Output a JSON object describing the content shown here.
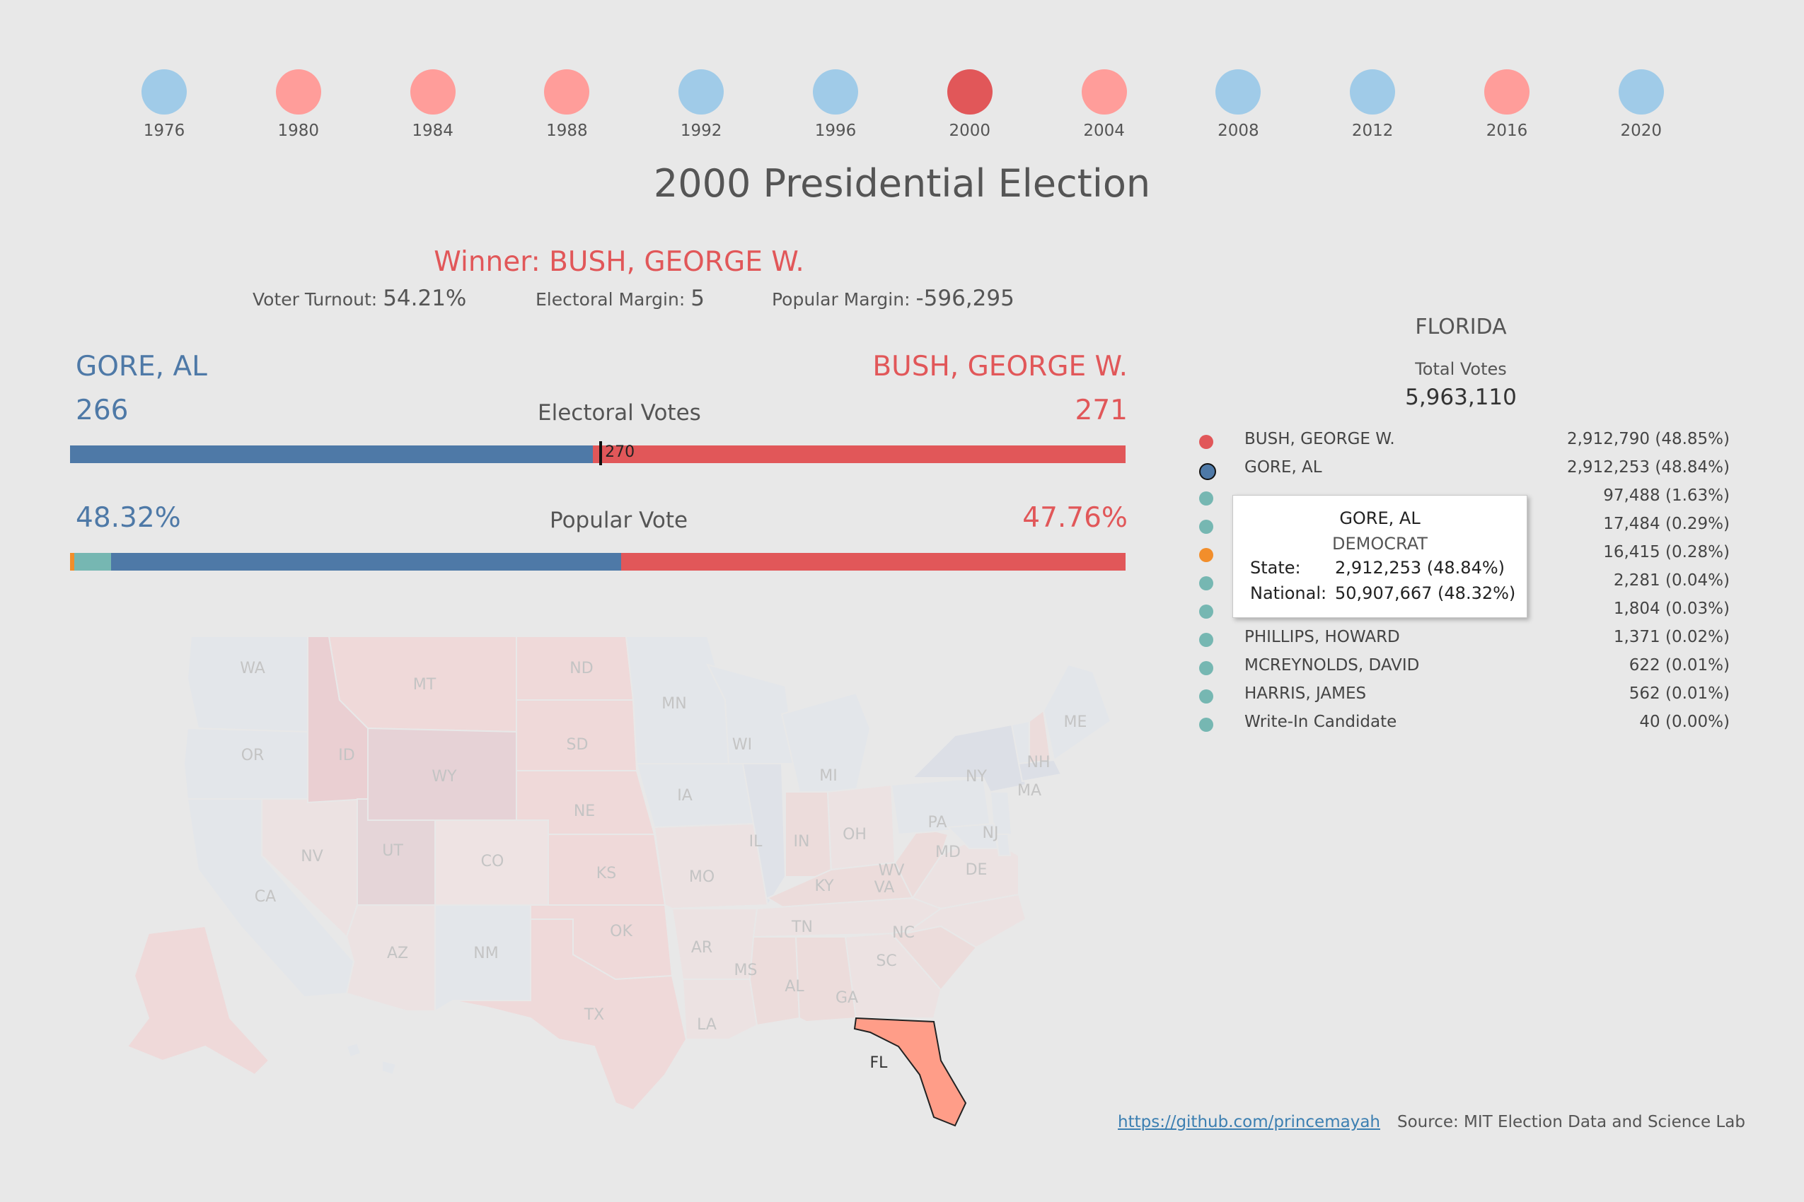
{
  "timeline": [
    {
      "year": "1976",
      "color": "#a0cbe8",
      "selected": false
    },
    {
      "year": "1980",
      "color": "#ff9d9a",
      "selected": false
    },
    {
      "year": "1984",
      "color": "#ff9d9a",
      "selected": false
    },
    {
      "year": "1988",
      "color": "#ff9d9a",
      "selected": false
    },
    {
      "year": "1992",
      "color": "#a0cbe8",
      "selected": false
    },
    {
      "year": "1996",
      "color": "#a0cbe8",
      "selected": false
    },
    {
      "year": "2000",
      "color": "#e15759",
      "selected": true
    },
    {
      "year": "2004",
      "color": "#ff9d9a",
      "selected": false
    },
    {
      "year": "2008",
      "color": "#a0cbe8",
      "selected": false
    },
    {
      "year": "2012",
      "color": "#a0cbe8",
      "selected": false
    },
    {
      "year": "2016",
      "color": "#ff9d9a",
      "selected": false
    },
    {
      "year": "2020",
      "color": "#a0cbe8",
      "selected": false
    }
  ],
  "title": "2000 Presidential Election",
  "winner": "Winner: BUSH, GEORGE W.",
  "stats": {
    "turnout_label": "Voter Turnout:",
    "turnout_value": "54.21%",
    "electoral_margin_label": "Electoral Margin:",
    "electoral_margin_value": "5",
    "popular_margin_label": "Popular Margin:",
    "popular_margin_value": "-596,295"
  },
  "candidates": {
    "left": {
      "name": "GORE, AL",
      "electoral": "266",
      "popular": "48.32%",
      "color": "#4e79a7"
    },
    "right": {
      "name": "BUSH, GEORGE W.",
      "electoral": "271",
      "popular": "47.76%",
      "color": "#e15759"
    }
  },
  "electoral_votes": {
    "label": "Electoral Votes",
    "threshold_label": "270",
    "gore": 266,
    "bush": 271,
    "total": 537
  },
  "popular_vote": {
    "label": "Popular Vote",
    "segments": [
      {
        "name": "other-orange",
        "pct": 0.4,
        "color": "#f28e2b"
      },
      {
        "name": "other-teal",
        "pct": 3.52,
        "color": "#76b7b2"
      },
      {
        "name": "gore",
        "pct": 48.32,
        "color": "#4e79a7"
      },
      {
        "name": "bush",
        "pct": 47.76,
        "color": "#e15759"
      }
    ]
  },
  "florida": {
    "state": "FLORIDA",
    "total_votes_label": "Total Votes",
    "total_votes": "5,963,110",
    "rows": [
      {
        "name": "BUSH, GEORGE W.",
        "votes": "2,912,790 (48.85%)",
        "color": "#e15759"
      },
      {
        "name": "GORE, AL",
        "votes": "2,912,253 (48.84%)",
        "color": "#4e79a7"
      },
      {
        "name": "",
        "votes": "97,488 (1.63%)",
        "color": "#76b7b2"
      },
      {
        "name": "",
        "votes": "17,484 (0.29%)",
        "color": "#76b7b2"
      },
      {
        "name": "",
        "votes": "16,415 (0.28%)",
        "color": "#f28e2b"
      },
      {
        "name": "",
        "votes": "2,281 (0.04%)",
        "color": "#76b7b2"
      },
      {
        "name": "",
        "votes": "1,804 (0.03%)",
        "color": "#76b7b2"
      },
      {
        "name": "PHILLIPS, HOWARD",
        "votes": "1,371 (0.02%)",
        "color": "#76b7b2"
      },
      {
        "name": "MCREYNOLDS, DAVID",
        "votes": "622 (0.01%)",
        "color": "#76b7b2"
      },
      {
        "name": "HARRIS, JAMES",
        "votes": "562 (0.01%)",
        "color": "#76b7b2"
      },
      {
        "name": "Write-In Candidate",
        "votes": "40 (0.00%)",
        "color": "#76b7b2"
      }
    ]
  },
  "tooltip": {
    "candidate": "GORE, AL",
    "party": "DEMOCRAT",
    "state_label": "State:",
    "state_value": "2,912,253 (48.84%)",
    "national_label": "National:",
    "national_value": "50,907,667 (48.32%)"
  },
  "map_labels": [
    "WA",
    "OR",
    "CA",
    "NV",
    "ID",
    "MT",
    "WY",
    "UT",
    "AZ",
    "CO",
    "NM",
    "ND",
    "SD",
    "NE",
    "KS",
    "OK",
    "TX",
    "MN",
    "IA",
    "MO",
    "AR",
    "LA",
    "WI",
    "IL",
    "MI",
    "IN",
    "OH",
    "KY",
    "TN",
    "MS",
    "AL",
    "GA",
    "FL",
    "SC",
    "NC",
    "VA",
    "WV",
    "PA",
    "NY",
    "ME",
    "NH",
    "MA",
    "NJ",
    "MD",
    "DE"
  ],
  "footer": {
    "link": "https://github.com/princemayah",
    "source": "Source: MIT Election Data and Science Lab"
  }
}
